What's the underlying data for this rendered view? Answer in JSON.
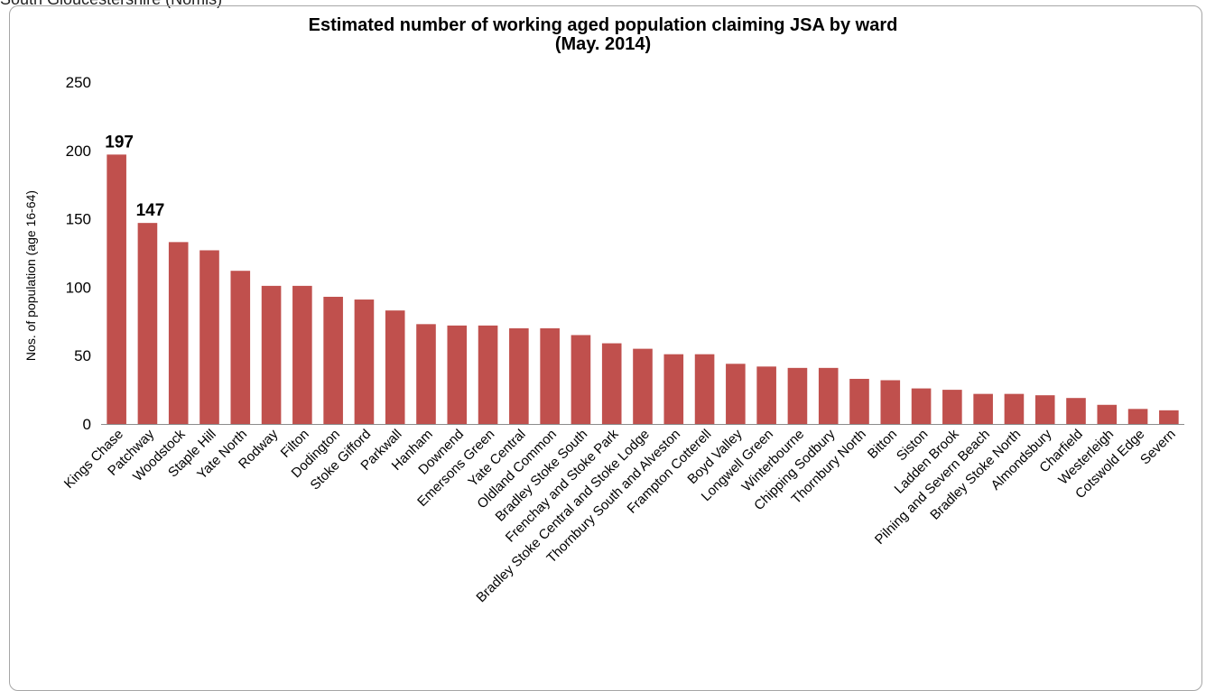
{
  "caption_fragment": "South Gloucestershire (Nomis)",
  "chart_data": {
    "type": "bar",
    "title": "Estimated number of working aged population claiming JSA by ward",
    "subtitle": "(May. 2014)",
    "xlabel": "",
    "ylabel": "Nos. of population (age 16-64)",
    "ylim": [
      0,
      250
    ],
    "yticks": [
      0,
      50,
      100,
      150,
      200,
      250
    ],
    "bar_color": "#c0504d",
    "grid": false,
    "legend": "none",
    "categories": [
      "Kings Chase",
      "Patchway",
      "Woodstock",
      "Staple Hill",
      "Yate North",
      "Rodway",
      "Filton",
      "Dodington",
      "Stoke Gifford",
      "Parkwall",
      "Hanham",
      "Downend",
      "Emersons Green",
      "Yate Central",
      "Oldland Common",
      "Bradley Stoke South",
      "Frenchay and Stoke Park",
      "Bradley Stoke Central and Stoke Lodge",
      "Thornbury South and Alveston",
      "Frampton Cotterell",
      "Boyd Valley",
      "Longwell Green",
      "Winterbourne",
      "Chipping Sodbury",
      "Thornbury North",
      "Bitton",
      "Siston",
      "Ladden Brook",
      "Pilning and Severn Beach",
      "Bradley Stoke North",
      "Almondsbury",
      "Charfield",
      "Westerleigh",
      "Cotswold Edge",
      "Severn"
    ],
    "values": [
      197,
      147,
      133,
      127,
      112,
      101,
      101,
      93,
      91,
      83,
      73,
      72,
      72,
      70,
      70,
      65,
      59,
      55,
      51,
      51,
      44,
      42,
      41,
      41,
      33,
      32,
      26,
      25,
      22,
      22,
      21,
      19,
      14,
      11,
      10
    ],
    "data_labels": [
      {
        "index": 0,
        "text": "197"
      },
      {
        "index": 1,
        "text": "147"
      }
    ]
  }
}
